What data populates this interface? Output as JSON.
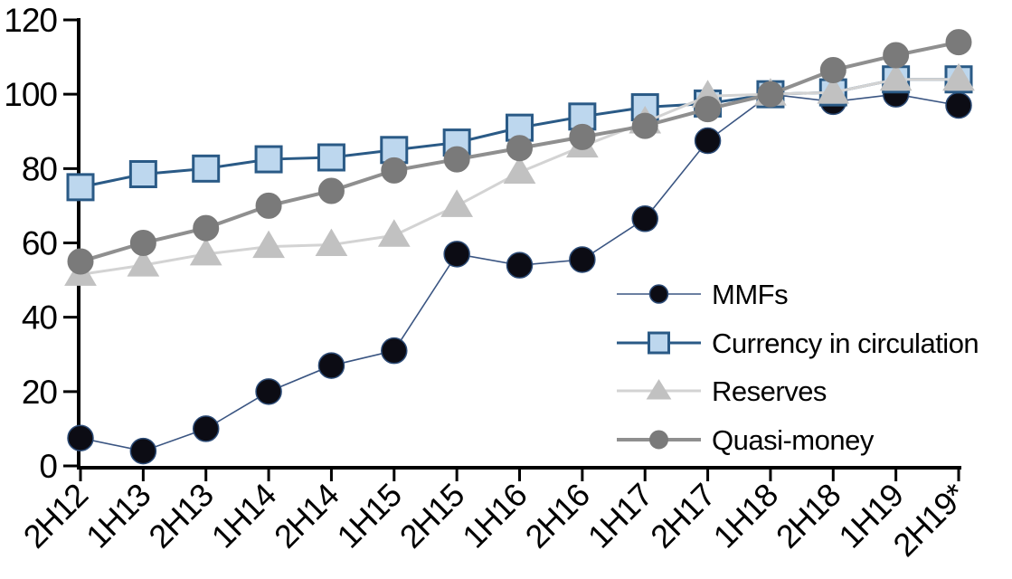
{
  "background": "#FFFFFF",
  "axis": {
    "color": "#000000",
    "y_ticks": [
      0,
      20,
      40,
      60,
      80,
      100,
      120
    ],
    "ylim": [
      0,
      120
    ]
  },
  "chart_data": {
    "type": "line",
    "title": "",
    "xlabel": "",
    "ylabel": "",
    "grid": false,
    "legend_position": "inside-right",
    "ylim": [
      0,
      120
    ],
    "ytick_interval": 20,
    "categories": [
      "2H12",
      "1H13",
      "2H13",
      "1H14",
      "2H14",
      "1H15",
      "2H15",
      "1H16",
      "2H16",
      "1H17",
      "2H17",
      "1H18",
      "2H18",
      "1H19",
      "2H19*"
    ],
    "series": [
      {
        "name": "MMFs",
        "marker": "circle",
        "line_color": "#3A5582",
        "line_width": 1.6,
        "marker_fill": "#0C0C14",
        "marker_stroke": "#2C4B76",
        "marker_stroke_width": 1.5,
        "values": [
          7.5,
          4,
          10,
          20,
          27,
          31,
          57,
          54,
          55.5,
          66.5,
          87.5,
          100,
          98,
          100,
          97
        ]
      },
      {
        "name": "Currency in circulation",
        "marker": "square",
        "line_color": "#2A5A86",
        "line_width": 3,
        "marker_fill": "#BDD7EE",
        "marker_stroke": "#2A5A86",
        "marker_stroke_width": 3,
        "values": [
          75,
          78.5,
          80,
          82.5,
          83,
          85,
          87,
          91,
          94,
          96.5,
          97.5,
          100,
          100.5,
          104,
          104
        ]
      },
      {
        "name": "Reserves",
        "marker": "triangle",
        "line_color": "#D3D3D3",
        "line_width": 3,
        "marker_fill": "#C1C1C1",
        "marker_stroke": "#C1C1C1",
        "marker_stroke_width": 1,
        "values": [
          51.5,
          54,
          57,
          59,
          59.5,
          62,
          70,
          79,
          86,
          92.5,
          99.5,
          100,
          100.5,
          104,
          104
        ]
      },
      {
        "name": "Quasi-money",
        "marker": "circle",
        "line_color": "#8F8F8F",
        "line_width": 4,
        "marker_fill": "#7A7A7A",
        "marker_stroke": "#7A7A7A",
        "marker_stroke_width": 1,
        "values": [
          55,
          60,
          64,
          70,
          74,
          79.5,
          82.5,
          85.5,
          88.5,
          91.5,
          96,
          100,
          106.5,
          110.5,
          114
        ]
      }
    ]
  }
}
